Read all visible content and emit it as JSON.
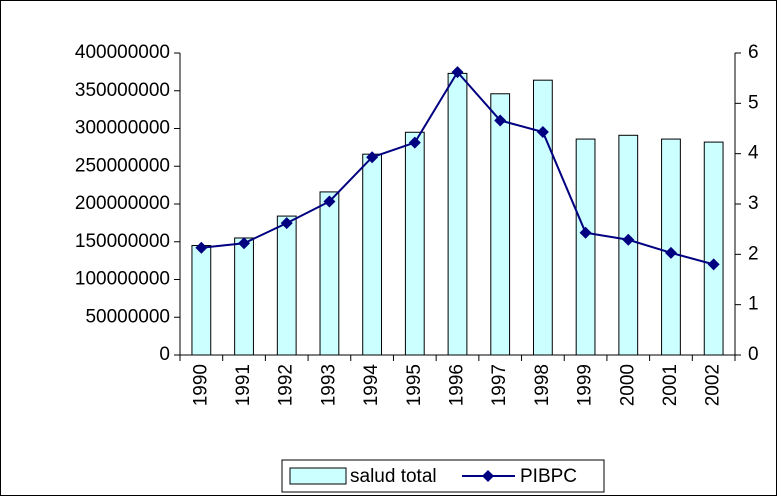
{
  "chart_data": {
    "type": "bar_line",
    "categories": [
      "1990",
      "1991",
      "1992",
      "1993",
      "1994",
      "1995",
      "1996",
      "1997",
      "1998",
      "1999",
      "2000",
      "2001",
      "2002"
    ],
    "series": [
      {
        "name": "salud total",
        "type": "bar",
        "color": "#ccffff",
        "values": [
          145000000,
          155000000,
          184000000,
          216000000,
          266000000,
          295000000,
          373000000,
          346000000,
          364000000,
          286000000,
          291000000,
          286000000,
          282000000
        ]
      },
      {
        "name": "PIBPC",
        "type": "line",
        "axis": "y2",
        "color": "#000080",
        "values": [
          2.13,
          2.22,
          2.62,
          3.05,
          3.93,
          4.22,
          5.62,
          4.66,
          4.43,
          2.43,
          2.29,
          2.03,
          1.8
        ]
      }
    ],
    "ylim": [
      0,
      400000000
    ],
    "yticks": [
      0,
      50000000,
      100000000,
      150000000,
      200000000,
      250000000,
      300000000,
      350000000,
      400000000
    ],
    "y2lim": [
      0,
      6
    ],
    "y2ticks": [
      0,
      1,
      2,
      3,
      4,
      5,
      6
    ],
    "legend": "bottom",
    "grid": false
  }
}
